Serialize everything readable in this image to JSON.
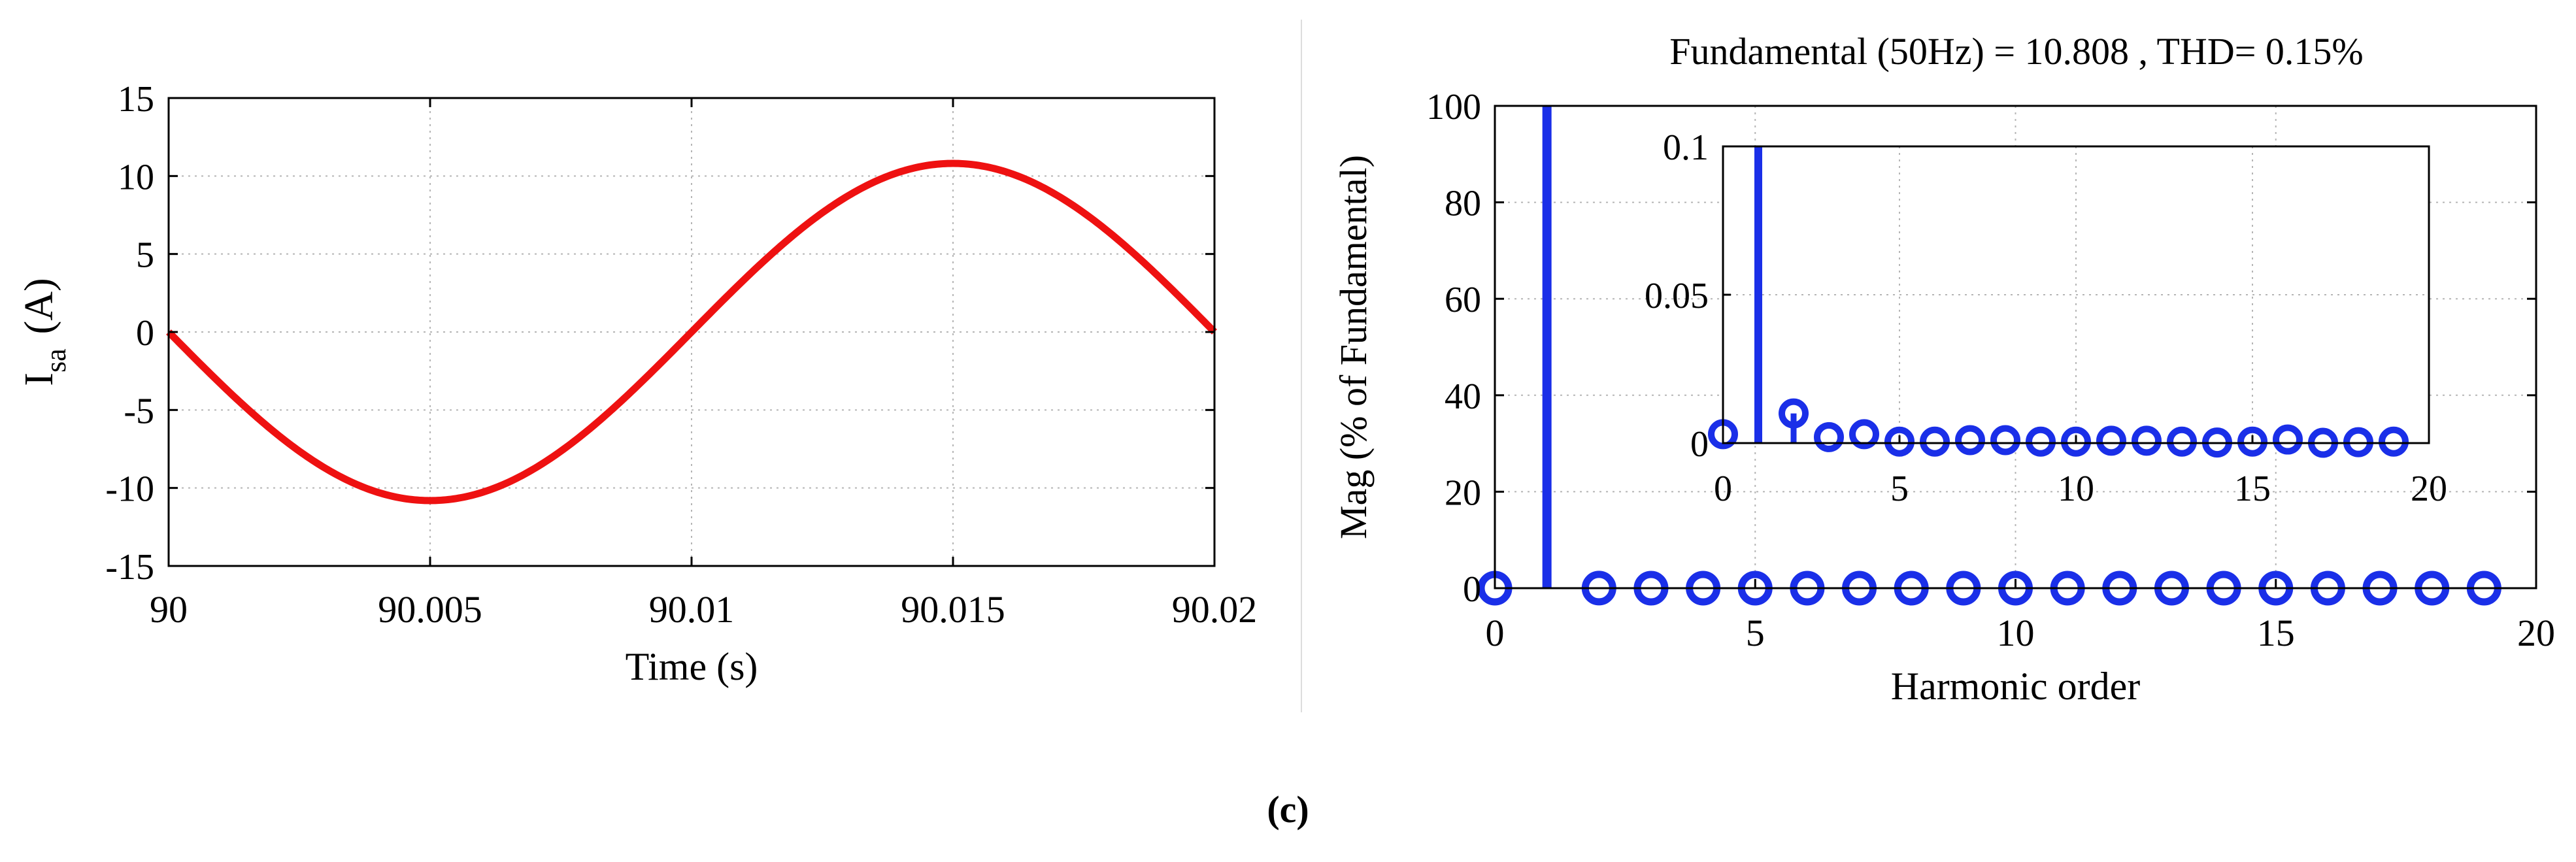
{
  "caption": "(c)",
  "chart_data": [
    {
      "type": "line",
      "title": "",
      "xlabel": "Time (s)",
      "ylabel_main": "I",
      "ylabel_sub": "sa",
      "ylabel_unit": "(A)",
      "xlim": [
        90,
        90.02
      ],
      "ylim": [
        -15,
        15
      ],
      "xticks": [
        90,
        90.005,
        90.01,
        90.015,
        90.02
      ],
      "xtick_labels": [
        "90",
        "90.005",
        "90.01",
        "90.015",
        "90.02"
      ],
      "yticks": [
        -15,
        -10,
        -5,
        0,
        5,
        10,
        15
      ],
      "ytick_labels": [
        "-15",
        "-10",
        "-5",
        "0",
        "5",
        "10",
        "15"
      ],
      "grid": true,
      "series": [
        {
          "name": "Isa",
          "color": "#ee1111",
          "amplitude": 10.808,
          "frequency_hz": 50,
          "t0": 90,
          "shape": "negative-sine"
        }
      ]
    },
    {
      "type": "stem",
      "title": "Fundamental (50Hz) = 10.808 , THD= 0.15%",
      "xlabel": "Harmonic order",
      "ylabel": "Mag (% of Fundamental)",
      "xlim": [
        0,
        20
      ],
      "ylim": [
        0,
        100
      ],
      "xticks": [
        0,
        5,
        10,
        15,
        20
      ],
      "xtick_labels": [
        "0",
        "5",
        "10",
        "15",
        "20"
      ],
      "yticks": [
        0,
        20,
        40,
        60,
        80,
        100
      ],
      "ytick_labels": [
        "0",
        "20",
        "40",
        "60",
        "80",
        "100"
      ],
      "grid": true,
      "color": "#1a2fe8",
      "x": [
        0,
        1,
        2,
        3,
        4,
        5,
        6,
        7,
        8,
        9,
        10,
        11,
        12,
        13,
        14,
        15,
        16,
        17,
        18,
        19
      ],
      "values": [
        0.003,
        100,
        0.01,
        0.002,
        0.003,
        0.0005,
        0.0005,
        0.001,
        0.001,
        0.0005,
        0.0005,
        0.0008,
        0.0008,
        0.0005,
        0.0002,
        0.0005,
        0.0012,
        0.0001,
        0.0003,
        0.0005
      ],
      "inset": {
        "xlim": [
          0,
          20
        ],
        "ylim": [
          0,
          0.1
        ],
        "xticks": [
          0,
          5,
          10,
          15,
          20
        ],
        "xtick_labels": [
          "0",
          "5",
          "10",
          "15",
          "20"
        ],
        "yticks": [
          0,
          0.05,
          0.1
        ],
        "ytick_labels": [
          "0",
          "0.05",
          "0.1"
        ],
        "grid": true
      }
    }
  ]
}
